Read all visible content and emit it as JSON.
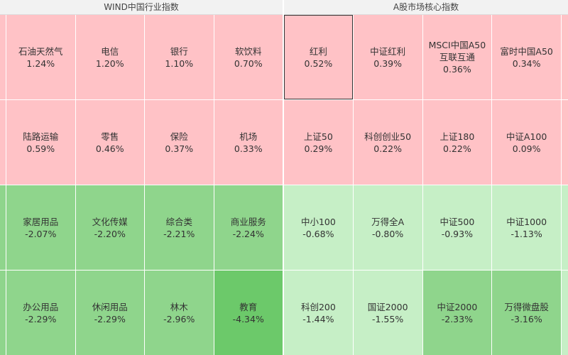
{
  "panels": [
    {
      "title": "WIND中国行业指数",
      "cells": [
        {
          "name": "石油天然气",
          "change": "1.24%",
          "color": "#ffc2c6"
        },
        {
          "name": "电信",
          "change": "1.20%",
          "color": "#ffc2c6"
        },
        {
          "name": "银行",
          "change": "1.10%",
          "color": "#ffc2c6"
        },
        {
          "name": "软饮料",
          "change": "0.70%",
          "color": "#ffc2c6"
        },
        {
          "name": "陆路运输",
          "change": "0.59%",
          "color": "#ffc2c6"
        },
        {
          "name": "零售",
          "change": "0.46%",
          "color": "#ffc2c6"
        },
        {
          "name": "保险",
          "change": "0.37%",
          "color": "#ffc2c6"
        },
        {
          "name": "机场",
          "change": "0.33%",
          "color": "#ffc2c6"
        },
        {
          "name": "家居用品",
          "change": "-2.07%",
          "color": "#8fd58c"
        },
        {
          "name": "文化传媒",
          "change": "-2.20%",
          "color": "#8fd58c"
        },
        {
          "name": "综合类",
          "change": "-2.21%",
          "color": "#8fd58c"
        },
        {
          "name": "商业服务",
          "change": "-2.24%",
          "color": "#8fd58c"
        },
        {
          "name": "办公用品",
          "change": "-2.29%",
          "color": "#8fd58c"
        },
        {
          "name": "休闲用品",
          "change": "-2.29%",
          "color": "#8fd58c"
        },
        {
          "name": "林木",
          "change": "-2.96%",
          "color": "#8fd58c"
        },
        {
          "name": "教育",
          "change": "-4.34%",
          "color": "#6cc96a"
        }
      ]
    },
    {
      "title": "A股市场核心指数",
      "cells": [
        {
          "name": "红利",
          "change": "0.52%",
          "color": "#ffc2c6"
        },
        {
          "name": "中证红利",
          "change": "0.39%",
          "color": "#ffc2c6"
        },
        {
          "name": "MSCI中国A50互联互通",
          "change": "0.36%",
          "color": "#ffc2c6"
        },
        {
          "name": "富时中国A50",
          "change": "0.34%",
          "color": "#ffc2c6"
        },
        {
          "name": "上证50",
          "change": "0.29%",
          "color": "#ffc2c6"
        },
        {
          "name": "科创创业50",
          "change": "0.22%",
          "color": "#ffc2c6"
        },
        {
          "name": "上证180",
          "change": "0.22%",
          "color": "#ffc2c6"
        },
        {
          "name": "中证A100",
          "change": "0.09%",
          "color": "#ffc2c6"
        },
        {
          "name": "中小100",
          "change": "-0.68%",
          "color": "#c6efc6"
        },
        {
          "name": "万得全A",
          "change": "-0.80%",
          "color": "#c6efc6"
        },
        {
          "name": "中证500",
          "change": "-0.93%",
          "color": "#c6efc6"
        },
        {
          "name": "中证1000",
          "change": "-1.13%",
          "color": "#c6efc6"
        },
        {
          "name": "科创200",
          "change": "-1.44%",
          "color": "#c6efc6"
        },
        {
          "name": "国证2000",
          "change": "-1.55%",
          "color": "#c6efc6"
        },
        {
          "name": "中证2000",
          "change": "-2.33%",
          "color": "#8fd58c"
        },
        {
          "name": "万得微盘股",
          "change": "-3.16%",
          "color": "#8fd58c"
        }
      ]
    }
  ]
}
